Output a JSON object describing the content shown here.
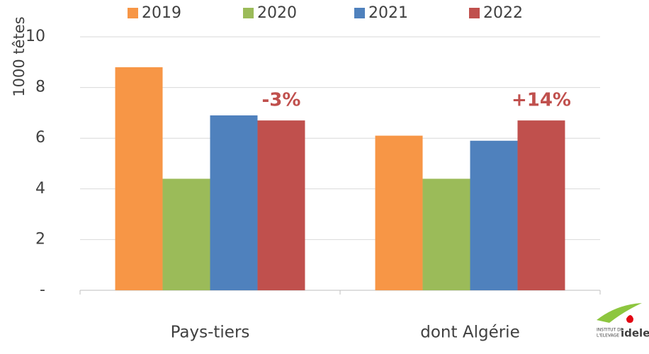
{
  "chart_data": {
    "type": "bar",
    "y_label": "1000 têtes",
    "categories": [
      "Pays-tiers",
      "dont Algérie"
    ],
    "series": [
      {
        "name": "2019",
        "color": "#f79646",
        "values": [
          8.8,
          6.1
        ]
      },
      {
        "name": "2020",
        "color": "#9bbb59",
        "values": [
          4.4,
          4.4
        ]
      },
      {
        "name": "2021",
        "color": "#4f81bd",
        "values": [
          6.9,
          5.9
        ]
      },
      {
        "name": "2022",
        "color": "#c0504d",
        "values": [
          6.7,
          6.7
        ]
      }
    ],
    "annotations": [
      "-3%",
      "+14%"
    ],
    "ylim": [
      0,
      10
    ],
    "yticks": [
      {
        "value": 0,
        "label": "-"
      },
      2,
      4,
      6,
      8,
      10
    ],
    "grid": true,
    "legend": "top"
  },
  "logo": {
    "line1": "INSTITUT DE",
    "line2": "L'ELEVAGE",
    "brand": "idele"
  }
}
